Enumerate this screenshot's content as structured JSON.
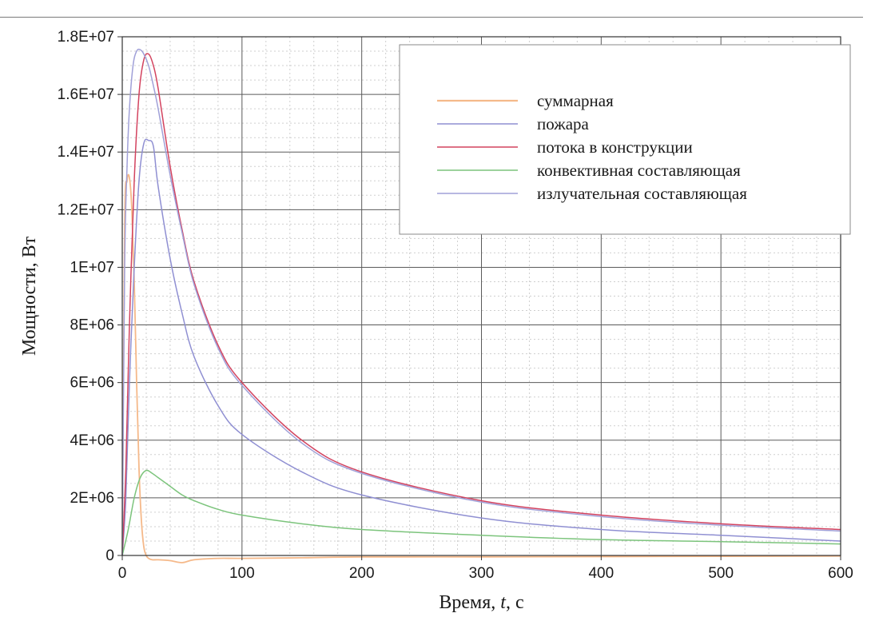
{
  "chart_data": {
    "type": "line",
    "title": "",
    "xlabel_prefix": "Время, ",
    "xlabel_var": "t",
    "xlabel_suffix": ", с",
    "ylabel": "Мощности, Вт",
    "xlim": [
      0,
      600
    ],
    "ylim": [
      0,
      18000000
    ],
    "x_ticks": [
      0,
      100,
      200,
      300,
      400,
      500,
      600
    ],
    "x_tick_labels": [
      "0",
      "100",
      "200",
      "300",
      "400",
      "500",
      "600"
    ],
    "y_ticks": [
      0,
      2000000,
      4000000,
      6000000,
      8000000,
      10000000,
      12000000,
      14000000,
      16000000,
      18000000
    ],
    "y_tick_labels": [
      "0",
      "2E+06",
      "4E+06",
      "6E+06",
      "8E+06",
      "1E+07",
      "1.2E+07",
      "1.4E+07",
      "1.6E+07",
      "1.8E+07"
    ],
    "grid": true,
    "legend_position": "top-right",
    "series": [
      {
        "name": "суммарная",
        "color": "#f5b98a",
        "x": [
          0,
          2,
          4,
          6,
          8,
          10,
          12,
          14,
          16,
          18,
          20,
          22,
          25,
          30,
          40,
          50,
          60,
          80,
          100,
          150,
          200,
          300,
          400,
          500,
          600
        ],
        "y": [
          0,
          11500000,
          13000000,
          13100000,
          12000000,
          9500000,
          6000000,
          3000000,
          1200000,
          300000,
          0,
          -100000,
          -150000,
          -150000,
          -180000,
          -250000,
          -150000,
          -100000,
          -100000,
          -80000,
          -50000,
          -50000,
          -40000,
          -30000,
          -20000
        ]
      },
      {
        "name": "пожара",
        "color": "#8f8fd2",
        "x": [
          0,
          3,
          6,
          10,
          14,
          18,
          22,
          26,
          30,
          40,
          50,
          60,
          80,
          100,
          150,
          200,
          300,
          400,
          500,
          600
        ],
        "y": [
          0,
          2000000,
          6000000,
          10000000,
          13000000,
          14300000,
          14400000,
          14200000,
          12800000,
          10300000,
          8400000,
          6900000,
          5200000,
          4200000,
          2900000,
          2100000,
          1300000,
          900000,
          700000,
          500000
        ]
      },
      {
        "name": "потока в конструкции",
        "color": "#d3435f",
        "x": [
          0,
          3,
          6,
          10,
          14,
          18,
          22,
          26,
          30,
          40,
          50,
          60,
          80,
          100,
          150,
          200,
          300,
          400,
          500,
          600
        ],
        "y": [
          0,
          3000000,
          8000000,
          13000000,
          16000000,
          17200000,
          17400000,
          17000000,
          16200000,
          13500000,
          11300000,
          9500000,
          7300000,
          6000000,
          4000000,
          2900000,
          1900000,
          1400000,
          1100000,
          900000
        ]
      },
      {
        "name": "конвективная составляющая",
        "color": "#7cc47c",
        "x": [
          0,
          5,
          10,
          15,
          20,
          25,
          30,
          40,
          50,
          60,
          80,
          100,
          150,
          200,
          300,
          400,
          500,
          600
        ],
        "y": [
          0,
          900000,
          2000000,
          2700000,
          2950000,
          2850000,
          2700000,
          2400000,
          2100000,
          1900000,
          1600000,
          1400000,
          1100000,
          900000,
          700000,
          550000,
          480000,
          400000
        ]
      },
      {
        "name": "излучательная составляющая",
        "color": "#a0a0d8",
        "x": [
          0,
          2,
          4,
          6,
          9,
          12,
          15,
          18,
          22,
          26,
          30,
          40,
          50,
          60,
          80,
          100,
          150,
          200,
          300,
          400,
          500,
          600
        ],
        "y": [
          0,
          10000000,
          13500000,
          15500000,
          17000000,
          17500000,
          17550000,
          17400000,
          17000000,
          16300000,
          15500000,
          13200000,
          11200000,
          9400000,
          7200000,
          5900000,
          3900000,
          2850000,
          1850000,
          1350000,
          1050000,
          850000
        ]
      }
    ]
  }
}
